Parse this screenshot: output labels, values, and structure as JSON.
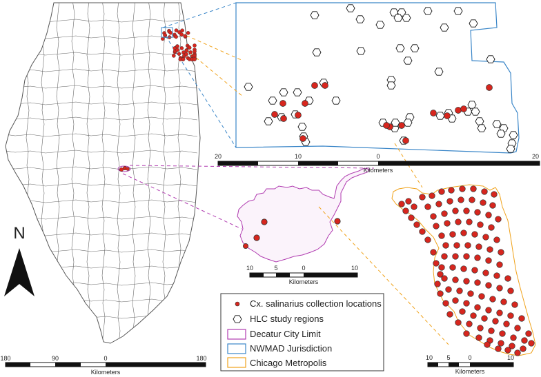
{
  "north_arrow": {
    "letter": "N"
  },
  "scalebars": {
    "illinois": {
      "ticks": [
        "180",
        "90",
        "0",
        "180"
      ],
      "unit": "Kilometers"
    },
    "nwmad": {
      "ticks": [
        "20",
        "10",
        "0",
        "20"
      ],
      "unit": "Kilometers"
    },
    "decatur": {
      "ticks": [
        "10",
        "5",
        "0",
        "10"
      ],
      "unit": "Kilometers"
    },
    "chicago": {
      "ticks": [
        "10",
        "5",
        "0",
        "10"
      ],
      "unit": "Kilometers"
    }
  },
  "legend": {
    "items": [
      {
        "label": "Cx. salinarius collection locations",
        "symbol": "red-dot"
      },
      {
        "label": "HLC study regions",
        "symbol": "hexagon"
      },
      {
        "label": "Decatur City Limit",
        "symbol": "box",
        "color": "#b03bb0"
      },
      {
        "label": "NWMAD Jurisdiction",
        "symbol": "box",
        "color": "#3a86c8"
      },
      {
        "label": "Chicago Metropolis",
        "symbol": "box",
        "color": "#f0a21a"
      }
    ]
  },
  "colors": {
    "collection_point": "#d7261e",
    "decatur": "#b03bb0",
    "nwmad": "#3a86c8",
    "chicago": "#f0a21a"
  }
}
